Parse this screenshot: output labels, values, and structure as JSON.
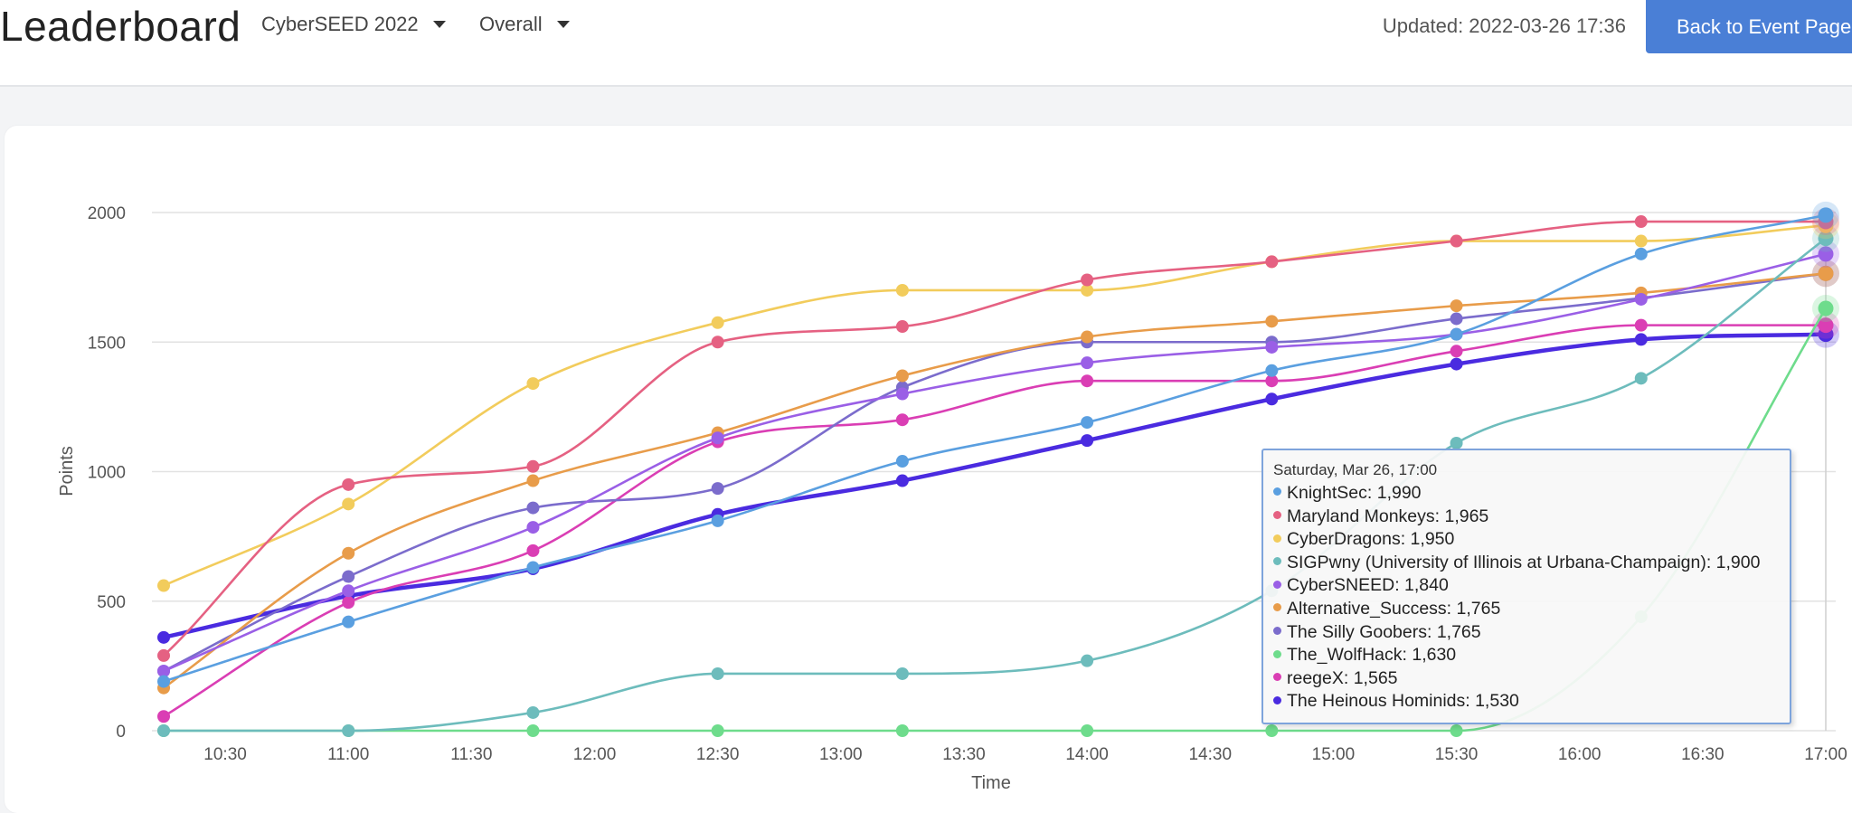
{
  "header": {
    "title": "Leaderboard",
    "event_select": "CyberSEED 2022",
    "view_select": "Overall",
    "updated": "Updated: 2022-03-26 17:36",
    "back_button": "Back to Event Page"
  },
  "tooltip": {
    "heading": "Saturday, Mar 26, 17:00"
  },
  "chart_data": {
    "type": "line",
    "xlabel": "Time",
    "ylabel": "Points",
    "ylim": [
      0,
      2000
    ],
    "yticks": [
      0,
      500,
      1000,
      1500,
      2000
    ],
    "xticks": [
      "10:30",
      "11:00",
      "11:30",
      "12:00",
      "12:30",
      "13:00",
      "13:30",
      "14:00",
      "14:30",
      "15:00",
      "15:30",
      "16:00",
      "16:30",
      "17:00"
    ],
    "x": [
      "10:15",
      "11:00",
      "11:45",
      "12:30",
      "13:15",
      "14:00",
      "14:45",
      "15:30",
      "16:15",
      "17:00"
    ],
    "grid": true,
    "series": [
      {
        "name": "KnightSec",
        "label": "KnightSec: 1,990",
        "color": "#5a9fe0",
        "values": [
          190,
          420,
          630,
          810,
          1040,
          1190,
          1390,
          1530,
          1840,
          1990
        ]
      },
      {
        "name": "Maryland Monkeys",
        "label": "Maryland Monkeys: 1,965",
        "color": "#e56182",
        "values": [
          290,
          950,
          1020,
          1500,
          1560,
          1740,
          1810,
          1890,
          1965,
          1965
        ]
      },
      {
        "name": "CyberDragons",
        "label": "CyberDragons: 1,950",
        "color": "#f2cc5c",
        "values": [
          560,
          875,
          1340,
          1575,
          1700,
          1700,
          1810,
          1890,
          1890,
          1950
        ]
      },
      {
        "name": "SIGPwny (University of Illinois at Urbana-Champaign)",
        "label": "SIGPwny (University of Illinois at Urbana-Champaign): 1,900",
        "color": "#6dbcbc",
        "values": [
          0,
          0,
          70,
          220,
          220,
          270,
          540,
          1110,
          1360,
          1900
        ]
      },
      {
        "name": "CyberSNEED",
        "label": "CyberSNEED: 1,840",
        "color": "#9a5fe6",
        "values": [
          230,
          540,
          785,
          1130,
          1300,
          1420,
          1480,
          1530,
          1665,
          1840
        ]
      },
      {
        "name": "Alternative_Success",
        "label": "Alternative_Success: 1,765",
        "color": "#e89c4a",
        "values": [
          165,
          685,
          965,
          1150,
          1370,
          1520,
          1580,
          1640,
          1690,
          1765
        ]
      },
      {
        "name": "The Silly Goobers",
        "label": "The Silly Goobers: 1,765",
        "color": "#7b6ccc",
        "values": [
          230,
          595,
          860,
          935,
          1325,
          1500,
          1500,
          1590,
          1670,
          1765
        ]
      },
      {
        "name": "The_WolfHack",
        "label": "The_WolfHack: 1,630",
        "color": "#6edc8c",
        "values": [
          0,
          0,
          0,
          0,
          0,
          0,
          0,
          0,
          440,
          1630
        ]
      },
      {
        "name": "reegeX",
        "label": "reegeX: 1,565",
        "color": "#da3eb4",
        "values": [
          55,
          495,
          695,
          1115,
          1200,
          1350,
          1350,
          1465,
          1565,
          1565
        ]
      },
      {
        "name": "The Heinous Hominids",
        "label": "The Heinous Hominids: 1,530",
        "color": "#4a2be0",
        "values": [
          360,
          520,
          625,
          835,
          965,
          1120,
          1280,
          1415,
          1510,
          1530
        ]
      }
    ]
  }
}
